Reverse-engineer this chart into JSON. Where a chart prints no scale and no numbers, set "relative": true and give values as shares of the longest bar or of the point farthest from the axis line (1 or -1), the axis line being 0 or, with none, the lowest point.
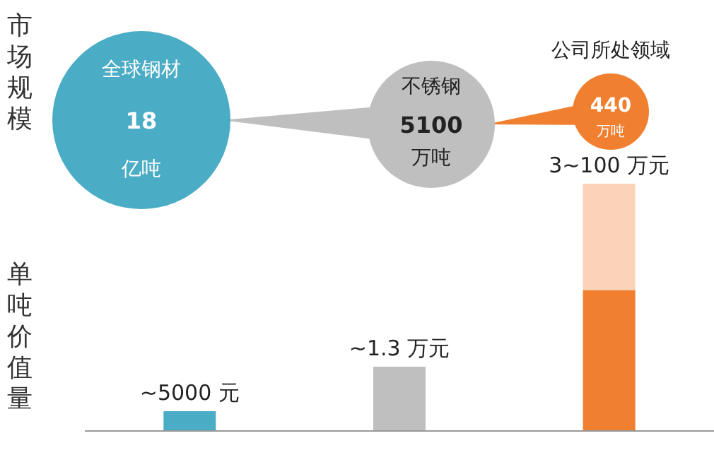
{
  "chart_data": [
    {
      "type": "other",
      "ylabel": "市场规模",
      "categories": [
        "全球钢材",
        "不锈钢",
        "公司所处领域"
      ],
      "values": [
        18,
        5100,
        440
      ],
      "data_labels": true,
      "colors": [
        "#4bacc6",
        "#bfbfbf",
        "#f07f2f"
      ],
      "annotations": [
        "亿吨",
        "万吨",
        "万吨"
      ]
    },
    {
      "type": "bar",
      "relative": true,
      "stacked": true,
      "ylabel": "单吨价值量",
      "categories": [
        null,
        null,
        null
      ],
      "series": [
        {
          "colors": [
            "#4bacc6",
            "#bfbfbf",
            "#f07f2f"
          ],
          "values": [
            0.08,
            0.26,
            0.57
          ]
        },
        {
          "color": "#fbd3b8",
          "values": [
            null,
            null,
            0.43
          ]
        }
      ],
      "annotations": [
        "~5000 元",
        "~1.3 万元",
        "3~100 万元"
      ]
    }
  ]
}
